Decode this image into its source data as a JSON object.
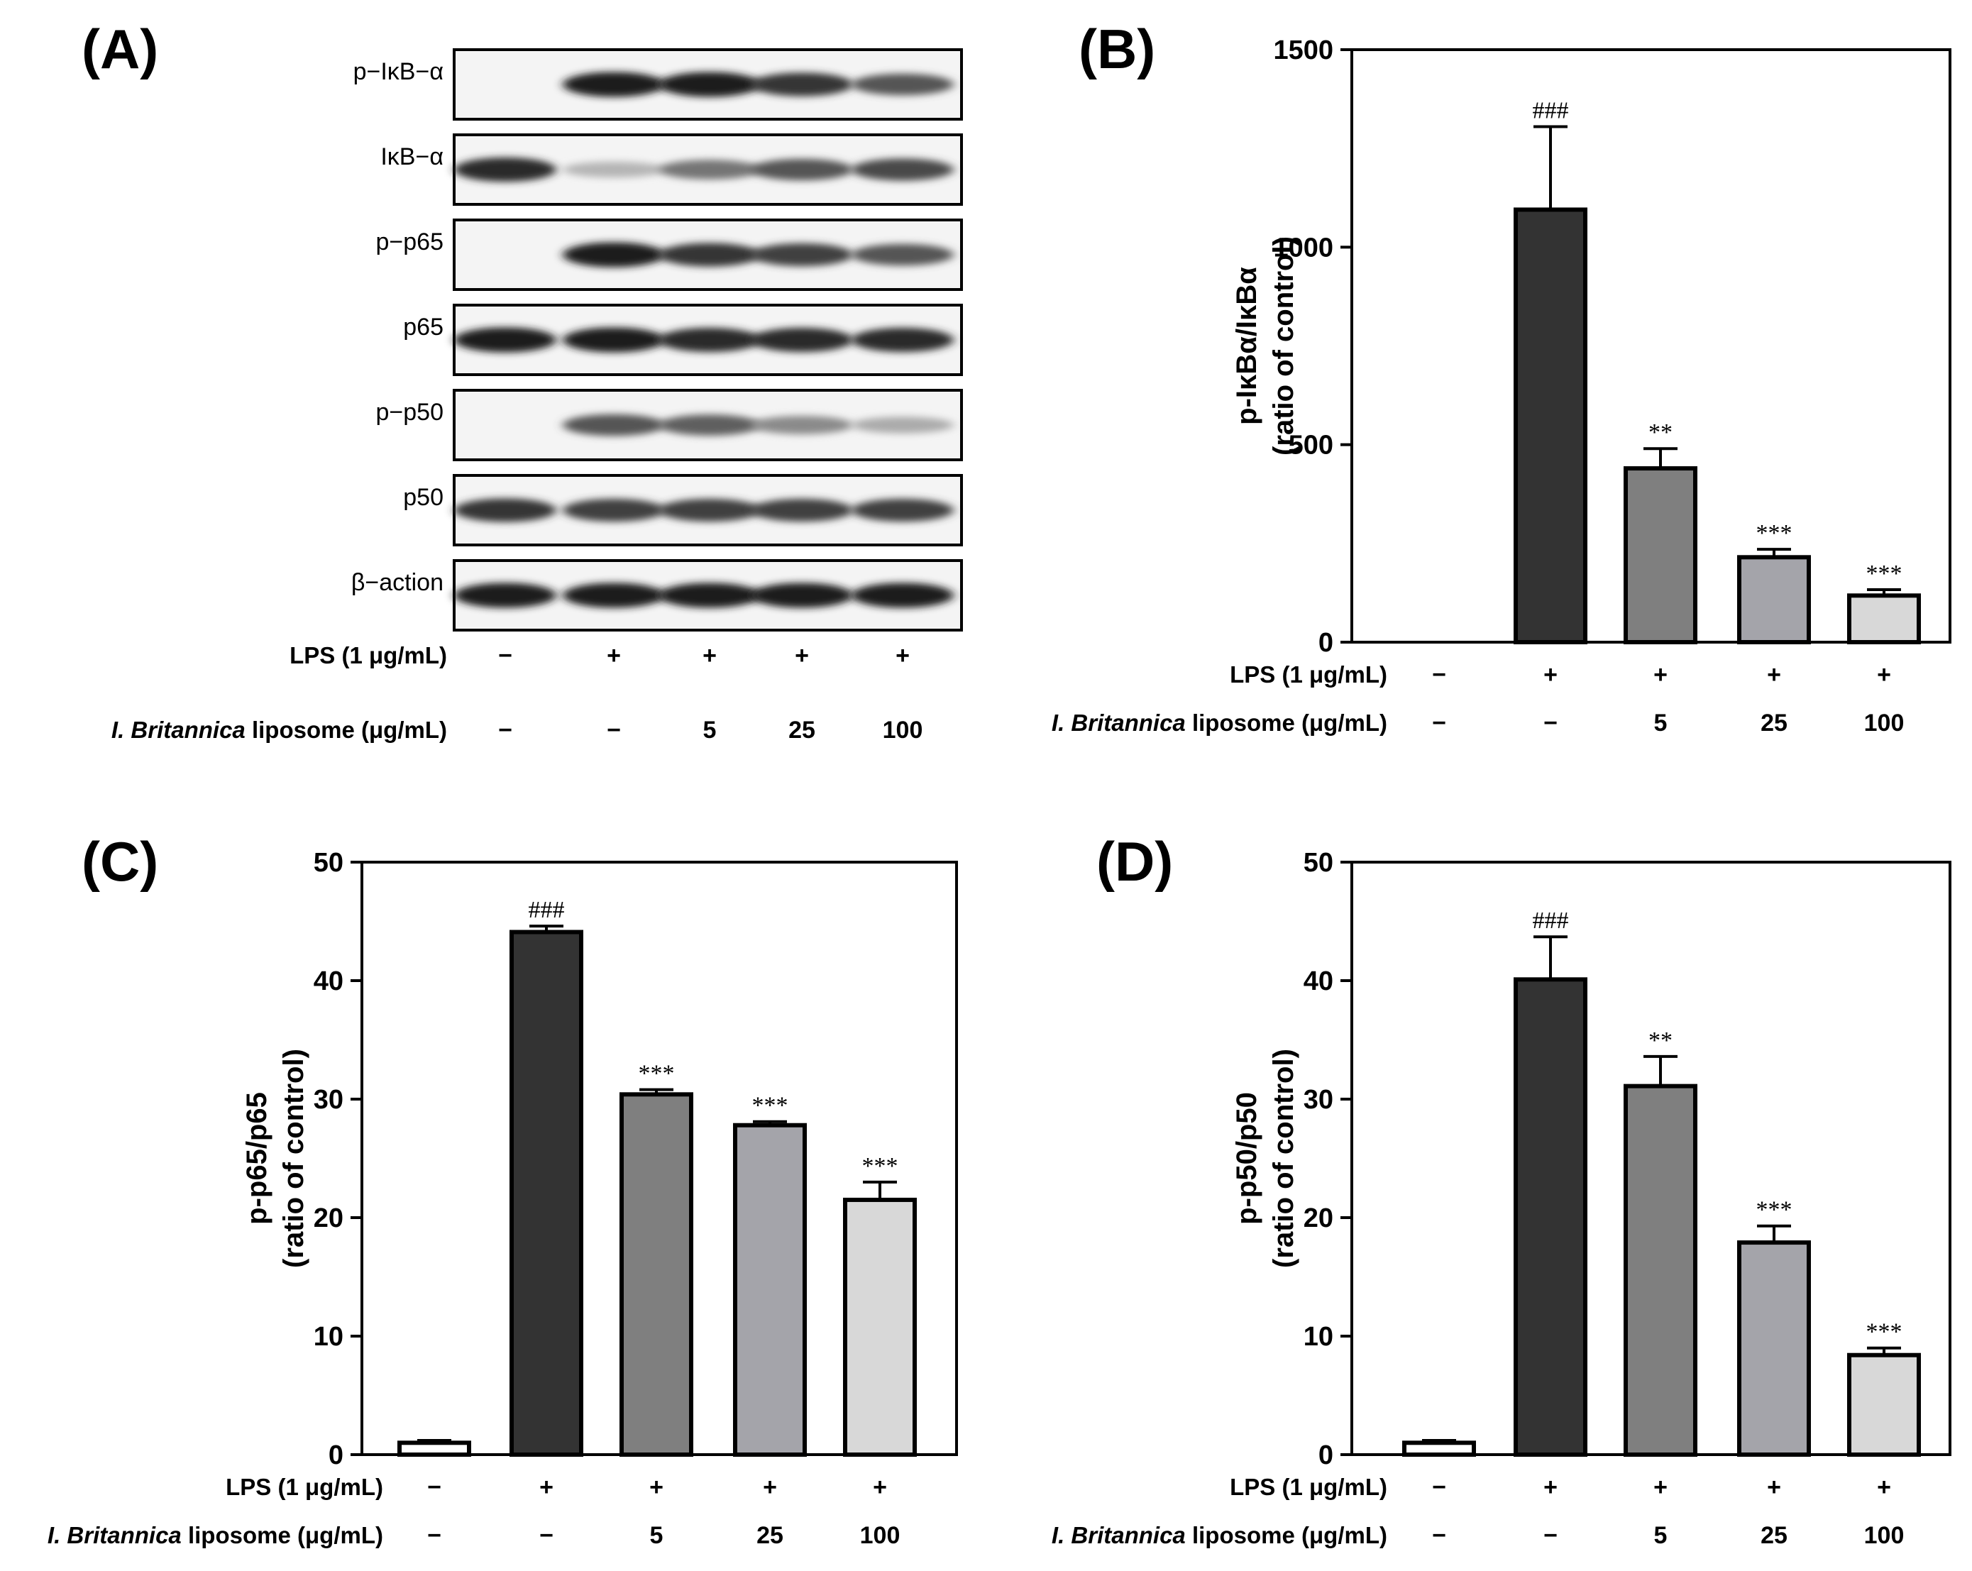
{
  "panels": {
    "A": "(A)",
    "B": "(B)",
    "C": "(C)",
    "D": "(D)"
  },
  "treatments": {
    "lps_label": "LPS (1 μg/mL)",
    "liposome_italic": "I. Britannica",
    "liposome_rest": " liposome (μg/mL)",
    "lps_values": [
      "−",
      "+",
      "+",
      "+",
      "+"
    ],
    "liposome_values": [
      "−",
      "−",
      "5",
      "25",
      "100"
    ]
  },
  "western_blot": {
    "rows": [
      {
        "label": "p−IκB−α",
        "intensities": [
          0.0,
          0.95,
          0.95,
          0.85,
          0.7
        ]
      },
      {
        "label": "IκB−α",
        "intensities": [
          0.9,
          0.25,
          0.55,
          0.7,
          0.75
        ]
      },
      {
        "label": "p−p65",
        "intensities": [
          0.0,
          0.95,
          0.85,
          0.8,
          0.7
        ]
      },
      {
        "label": "p65",
        "intensities": [
          0.95,
          0.95,
          0.9,
          0.9,
          0.9
        ]
      },
      {
        "label": "p−p50",
        "intensities": [
          0.0,
          0.7,
          0.65,
          0.45,
          0.3
        ]
      },
      {
        "label": "p50",
        "intensities": [
          0.85,
          0.8,
          0.8,
          0.8,
          0.8
        ]
      },
      {
        "label": "β−action",
        "intensities": [
          0.95,
          0.95,
          0.95,
          0.95,
          0.95
        ]
      }
    ]
  },
  "colors": {
    "bars": [
      "#ffffff",
      "#333333",
      "#7f7f7f",
      "#a4a4aa",
      "#d8d8d8"
    ]
  },
  "chart_data": [
    {
      "id": "B",
      "type": "bar",
      "categories": [
        "Control",
        "LPS",
        "LPS + 5",
        "LPS + 25",
        "LPS + 100"
      ],
      "values": [
        0,
        1095,
        440,
        215,
        118
      ],
      "errors": [
        0,
        210,
        50,
        20,
        15
      ],
      "annotations": [
        "",
        "###",
        "**",
        "***",
        "***"
      ],
      "ylabel_line1": "p-IκBα/IκBα",
      "ylabel_line2": "(ratio of control)",
      "ylim": [
        0,
        1500
      ],
      "yticks": [
        "0",
        "500",
        "1000",
        "1500"
      ],
      "ytick_values": [
        0,
        500,
        1000,
        1500
      ]
    },
    {
      "id": "C",
      "type": "bar",
      "categories": [
        "Control",
        "LPS",
        "LPS + 5",
        "LPS + 25",
        "LPS + 100"
      ],
      "values": [
        1.0,
        44.1,
        30.4,
        27.8,
        21.5
      ],
      "errors": [
        0.2,
        0.5,
        0.4,
        0.3,
        1.5
      ],
      "annotations": [
        "",
        "###",
        "***",
        "***",
        "***"
      ],
      "ylabel_line1": "p-p65/p65",
      "ylabel_line2": "(ratio of control)",
      "ylim": [
        0,
        50
      ],
      "yticks": [
        "0",
        "10",
        "20",
        "30",
        "40",
        "50"
      ],
      "ytick_values": [
        0,
        10,
        20,
        30,
        40,
        50
      ]
    },
    {
      "id": "D",
      "type": "bar",
      "categories": [
        "Control",
        "LPS",
        "LPS + 5",
        "LPS + 25",
        "LPS + 100"
      ],
      "values": [
        1.0,
        40.1,
        31.1,
        17.9,
        8.4
      ],
      "errors": [
        0.2,
        3.6,
        2.5,
        1.4,
        0.6
      ],
      "annotations": [
        "",
        "###",
        "**",
        "***",
        "***"
      ],
      "ylabel_line1": "p-p50/p50",
      "ylabel_line2": "(ratio of control)",
      "ylim": [
        0,
        50
      ],
      "yticks": [
        "0",
        "10",
        "20",
        "30",
        "40",
        "50"
      ],
      "ytick_values": [
        0,
        10,
        20,
        30,
        40,
        50
      ]
    }
  ]
}
